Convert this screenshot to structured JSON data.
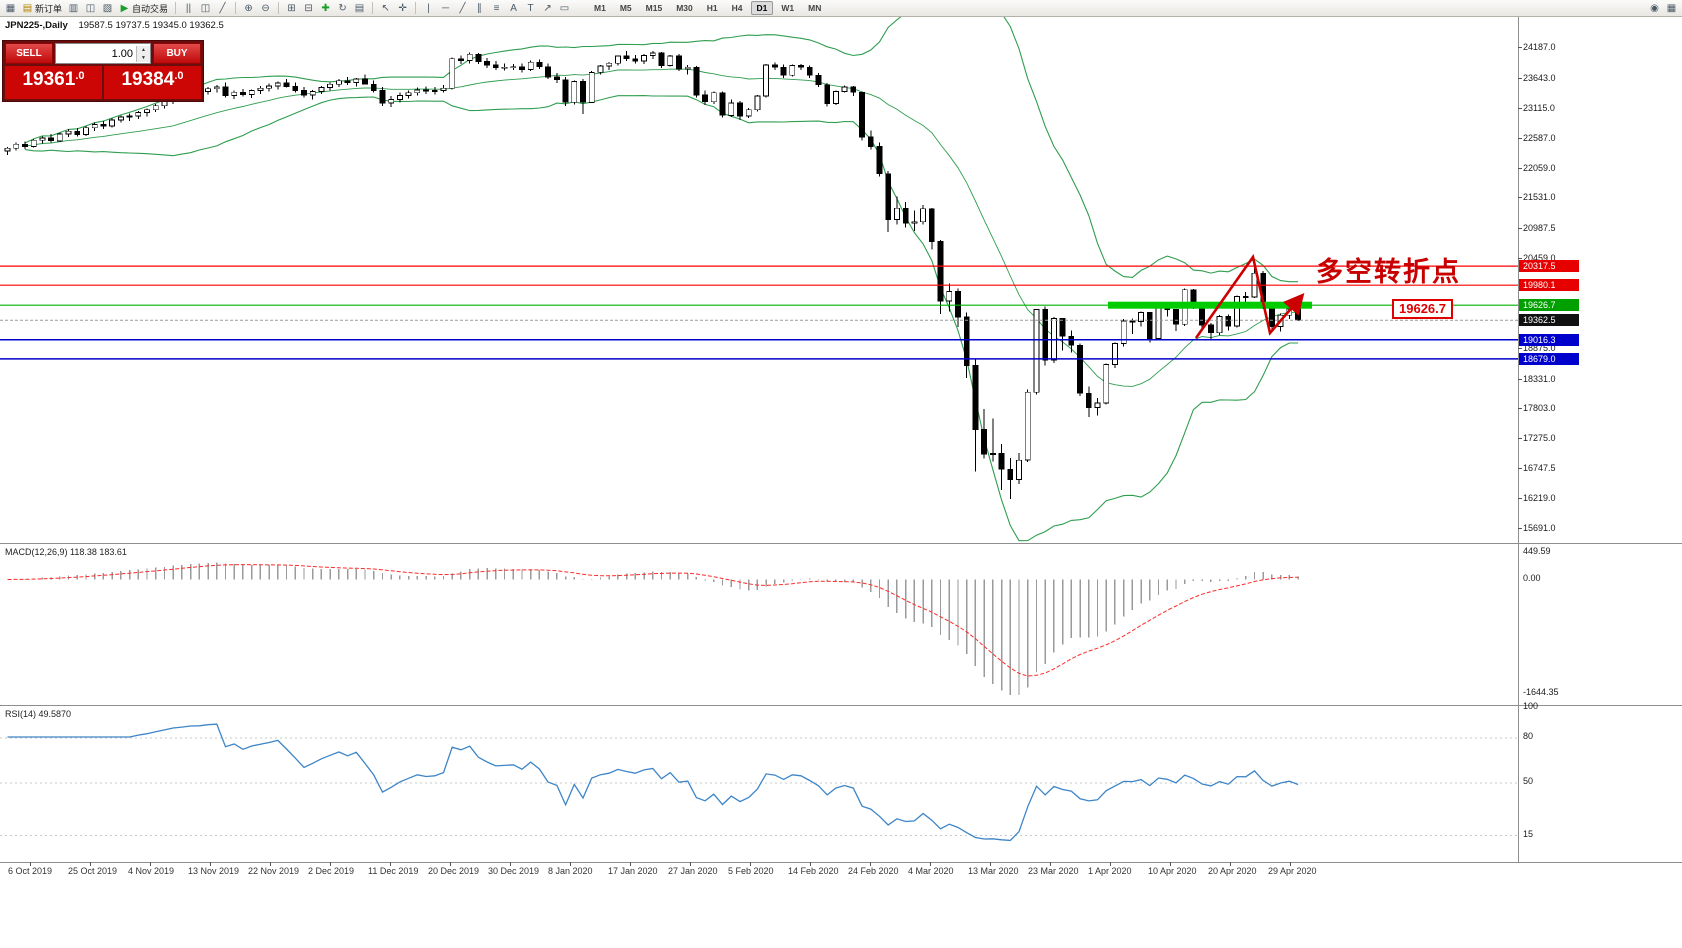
{
  "toolbar": {
    "tools": [
      {
        "name": "chart-window-icon",
        "glyph": "▦"
      },
      {
        "name": "new-order-button",
        "glyph": "▤",
        "label": "新订单",
        "color": "#b08000"
      },
      {
        "name": "profiles-icon",
        "glyph": "▥"
      },
      {
        "name": "data-window-icon",
        "glyph": "◫"
      },
      {
        "name": "navigator-icon",
        "glyph": "▧"
      },
      {
        "name": "auto-trading-button",
        "glyph": "▶",
        "label": "自动交易",
        "color": "#1c9e2c"
      },
      {
        "sep": true
      },
      {
        "name": "bar-chart-icon",
        "glyph": "||"
      },
      {
        "name": "candlestick-icon",
        "glyph": "◫"
      },
      {
        "name": "line-chart-icon",
        "glyph": "╱"
      },
      {
        "sep": true
      },
      {
        "name": "zoom-in-icon",
        "glyph": "⊕"
      },
      {
        "name": "zoom-out-icon",
        "glyph": "⊖"
      },
      {
        "sep": true
      },
      {
        "name": "tile-windows-icon",
        "glyph": "⊞"
      },
      {
        "name": "cascade-windows-icon",
        "glyph": "⊟"
      },
      {
        "name": "indicators-icon",
        "glyph": "✚",
        "color": "#1c9e2c"
      },
      {
        "name": "periods-icon",
        "glyph": "↻"
      },
      {
        "name": "templates-icon",
        "glyph": "▤"
      },
      {
        "sep": true
      },
      {
        "name": "cursor-icon",
        "glyph": "↖"
      },
      {
        "name": "crosshair-icon",
        "glyph": "✛"
      },
      {
        "sep": true
      },
      {
        "name": "vertical-line-icon",
        "glyph": "|"
      },
      {
        "name": "horizontal-line-icon",
        "glyph": "─"
      },
      {
        "name": "trendline-icon",
        "glyph": "╱"
      },
      {
        "name": "channel-icon",
        "glyph": "∥"
      },
      {
        "name": "fibonacci-icon",
        "glyph": "≡"
      },
      {
        "name": "text-icon",
        "glyph": "A"
      },
      {
        "name": "label-icon",
        "glyph": "T"
      },
      {
        "name": "arrows-icon",
        "glyph": "↗"
      },
      {
        "name": "shapes-icon",
        "glyph": "▭"
      }
    ],
    "timeframes": [
      "M1",
      "M5",
      "M15",
      "M30",
      "H1",
      "H4",
      "D1",
      "W1",
      "MN"
    ],
    "active_timeframe": "D1",
    "right_tools": [
      {
        "name": "search-icon",
        "glyph": "◉"
      },
      {
        "name": "new-chart-icon",
        "glyph": "▦"
      }
    ]
  },
  "chart_header": {
    "symbol_period": "JPN225-,Daily",
    "ohlc": "19587.5 19737.5 19345.0 19362.5"
  },
  "trade_panel": {
    "sell_label": "SELL",
    "buy_label": "BUY",
    "volume": "1.00",
    "sell_price": "19361.0",
    "buy_price": "19384.0"
  },
  "annotations": {
    "turning_point": "多空转折点",
    "price_tag": "19626.7"
  },
  "price_axis": {
    "ticks": [
      {
        "label": "24187.0",
        "value": 24187.0
      },
      {
        "label": "23643.0",
        "value": 23643.0
      },
      {
        "label": "23115.0",
        "value": 23115.0
      },
      {
        "label": "22587.0",
        "value": 22587.0
      },
      {
        "label": "22059.0",
        "value": 22059.0
      },
      {
        "label": "21531.0",
        "value": 21531.0
      },
      {
        "label": "20987.5",
        "value": 20987.5
      },
      {
        "label": "20459.0",
        "value": 20459.0
      },
      {
        "label": "18875.0",
        "value": 18875.0
      },
      {
        "label": "18331.0",
        "value": 18331.0
      },
      {
        "label": "17803.0",
        "value": 17803.0
      },
      {
        "label": "17275.0",
        "value": 17275.0
      },
      {
        "label": "16747.5",
        "value": 16747.5
      },
      {
        "label": "16219.0",
        "value": 16219.0
      },
      {
        "label": "15691.0",
        "value": 15691.0
      }
    ]
  },
  "time_axis": {
    "labels": [
      "6 Oct 2019",
      "25 Oct 2019",
      "4 Nov 2019",
      "13 Nov 2019",
      "22 Nov 2019",
      "2 Dec 2019",
      "11 Dec 2019",
      "20 Dec 2019",
      "30 Dec 2019",
      "8 Jan 2020",
      "17 Jan 2020",
      "27 Jan 2020",
      "5 Feb 2020",
      "14 Feb 2020",
      "24 Feb 2020",
      "4 Mar 2020",
      "13 Mar 2020",
      "23 Mar 2020",
      "1 Apr 2020",
      "10 Apr 2020",
      "20 Apr 2020",
      "29 Apr 2020"
    ]
  },
  "macd_panel": {
    "label": "MACD(12,26,9) 118.38 183.61",
    "scale": [
      "449.59",
      "0.00",
      "-1644.35"
    ]
  },
  "rsi_panel": {
    "label": "RSI(14) 49.5870",
    "scale": [
      "100",
      "80",
      "50",
      "15"
    ],
    "levels": [
      80,
      50,
      15
    ]
  },
  "chart_data": {
    "type": "candlestick",
    "symbol": "JPN225-",
    "timeframe": "Daily",
    "current_ohlc": [
      19587.5,
      19737.5,
      19345.0,
      19362.5
    ],
    "bid": 19361.0,
    "ask": 19384.0,
    "y_range": [
      15480,
      24700
    ],
    "bollinger": {
      "period": 20,
      "deviation": 2,
      "color": "#2f9e4f"
    },
    "macd": {
      "fast": 12,
      "slow": 26,
      "signal": 9
    },
    "rsi": {
      "period": 14
    },
    "levels": [
      {
        "price": 20317.5,
        "label": "20317.5",
        "color": "#ff0000",
        "badge": "#e60000",
        "width": 1.2
      },
      {
        "price": 19980.1,
        "label": "19980.1",
        "color": "#ff0000",
        "badge": "#e60000",
        "width": 1.2
      },
      {
        "price": 19626.7,
        "label": "19626.7",
        "color": "#00b300",
        "badge": "#00a000",
        "width": 1.2,
        "thick": [
          1108,
          1312
        ]
      },
      {
        "price": 19362.5,
        "label": "19362.5",
        "color": "#999999",
        "badge": "#111111",
        "width": 1,
        "dash": "3 2"
      },
      {
        "price": 19016.3,
        "label": "19016.3",
        "color": "#0000cc",
        "badge": "#0000cc",
        "width": 1.5
      },
      {
        "price": 18679.0,
        "label": "18679.0",
        "color": "#0000cc",
        "badge": "#0000cc",
        "width": 1.5
      }
    ],
    "candles": [
      [
        22350,
        22420,
        22280,
        22400
      ],
      [
        22400,
        22500,
        22360,
        22470
      ],
      [
        22470,
        22520,
        22390,
        22430
      ],
      [
        22430,
        22560,
        22410,
        22540
      ],
      [
        22540,
        22610,
        22480,
        22580
      ],
      [
        22580,
        22650,
        22500,
        22530
      ],
      [
        22530,
        22680,
        22510,
        22650
      ],
      [
        22650,
        22740,
        22600,
        22700
      ],
      [
        22700,
        22760,
        22610,
        22640
      ],
      [
        22640,
        22790,
        22620,
        22760
      ],
      [
        22760,
        22850,
        22700,
        22820
      ],
      [
        22820,
        22880,
        22740,
        22790
      ],
      [
        22790,
        22930,
        22770,
        22900
      ],
      [
        22900,
        22980,
        22850,
        22950
      ],
      [
        22950,
        23010,
        22880,
        22970
      ],
      [
        22970,
        23060,
        22920,
        23030
      ],
      [
        23030,
        23100,
        22960,
        23080
      ],
      [
        23080,
        23180,
        23040,
        23150
      ],
      [
        23150,
        23250,
        23100,
        23220
      ],
      [
        23220,
        23330,
        23180,
        23300
      ],
      [
        23300,
        23380,
        23250,
        23340
      ],
      [
        23340,
        23420,
        23280,
        23390
      ],
      [
        23390,
        23450,
        23320,
        23400
      ],
      [
        23400,
        23480,
        23350,
        23450
      ],
      [
        23450,
        23520,
        23380,
        23480
      ],
      [
        23480,
        23560,
        23300,
        23330
      ],
      [
        23330,
        23420,
        23270,
        23390
      ],
      [
        23390,
        23450,
        23310,
        23350
      ],
      [
        23350,
        23440,
        23290,
        23420
      ],
      [
        23420,
        23500,
        23360,
        23460
      ],
      [
        23460,
        23540,
        23400,
        23500
      ],
      [
        23500,
        23580,
        23440,
        23550
      ],
      [
        23550,
        23620,
        23470,
        23490
      ],
      [
        23490,
        23560,
        23380,
        23420
      ],
      [
        23420,
        23480,
        23300,
        23340
      ],
      [
        23340,
        23430,
        23260,
        23400
      ],
      [
        23400,
        23500,
        23360,
        23470
      ],
      [
        23470,
        23560,
        23420,
        23530
      ],
      [
        23530,
        23620,
        23480,
        23590
      ],
      [
        23590,
        23660,
        23520,
        23560
      ],
      [
        23560,
        23640,
        23490,
        23620
      ],
      [
        23620,
        23700,
        23550,
        23530
      ],
      [
        23530,
        23600,
        23380,
        23420
      ],
      [
        23420,
        23480,
        23150,
        23200
      ],
      [
        23200,
        23320,
        23130,
        23260
      ],
      [
        23260,
        23380,
        23210,
        23330
      ],
      [
        23330,
        23420,
        23280,
        23380
      ],
      [
        23380,
        23470,
        23330,
        23430
      ],
      [
        23430,
        23490,
        23360,
        23410
      ],
      [
        23410,
        23480,
        23350,
        23420
      ],
      [
        23420,
        23520,
        23380,
        23460
      ],
      [
        23460,
        24000,
        23440,
        23980
      ],
      [
        23980,
        24040,
        23890,
        23950
      ],
      [
        23950,
        24090,
        23900,
        24060
      ],
      [
        24060,
        24080,
        23890,
        23930
      ],
      [
        23930,
        23990,
        23820,
        23870
      ],
      [
        23870,
        23940,
        23780,
        23820
      ],
      [
        23820,
        23900,
        23770,
        23830
      ],
      [
        23830,
        23890,
        23780,
        23840
      ],
      [
        23840,
        23900,
        23740,
        23790
      ],
      [
        23790,
        23950,
        23760,
        23920
      ],
      [
        23920,
        23970,
        23800,
        23840
      ],
      [
        23840,
        23900,
        23620,
        23660
      ],
      [
        23660,
        23730,
        23550,
        23610
      ],
      [
        23610,
        23660,
        23150,
        23210
      ],
      [
        23210,
        23600,
        23170,
        23580
      ],
      [
        23580,
        23620,
        23000,
        23210
      ],
      [
        23210,
        23760,
        23200,
        23740
      ],
      [
        23740,
        23870,
        23700,
        23850
      ],
      [
        23850,
        23920,
        23780,
        23900
      ],
      [
        23900,
        24040,
        23860,
        24030
      ],
      [
        24030,
        24120,
        23940,
        23980
      ],
      [
        23980,
        24050,
        23900,
        23940
      ],
      [
        23940,
        24060,
        23890,
        24040
      ],
      [
        24040,
        24120,
        23980,
        24080
      ],
      [
        24080,
        24100,
        23820,
        23860
      ],
      [
        23860,
        24050,
        23840,
        24030
      ],
      [
        24030,
        24060,
        23760,
        23800
      ],
      [
        23800,
        23870,
        23700,
        23830
      ],
      [
        23830,
        23850,
        23300,
        23340
      ],
      [
        23340,
        23420,
        23160,
        23220
      ],
      [
        23220,
        23400,
        23180,
        23380
      ],
      [
        23380,
        23400,
        22940,
        22980
      ],
      [
        22980,
        23260,
        22950,
        23200
      ],
      [
        23200,
        23230,
        22900,
        22970
      ],
      [
        22970,
        23110,
        22930,
        23080
      ],
      [
        23080,
        23340,
        23050,
        23320
      ],
      [
        23320,
        23890,
        23300,
        23870
      ],
      [
        23870,
        23910,
        23780,
        23830
      ],
      [
        23830,
        23880,
        23640,
        23690
      ],
      [
        23690,
        23880,
        23670,
        23860
      ],
      [
        23860,
        23890,
        23780,
        23830
      ],
      [
        23830,
        23860,
        23640,
        23690
      ],
      [
        23690,
        23730,
        23480,
        23520
      ],
      [
        23520,
        23550,
        23140,
        23190
      ],
      [
        23190,
        23420,
        23160,
        23400
      ],
      [
        23400,
        23510,
        23380,
        23480
      ],
      [
        23480,
        23500,
        23320,
        23390
      ],
      [
        23390,
        23400,
        22540,
        22600
      ],
      [
        22600,
        22710,
        22380,
        22430
      ],
      [
        22430,
        22500,
        21900,
        21950
      ],
      [
        21950,
        22000,
        20920,
        21140
      ],
      [
        21140,
        21550,
        21050,
        21340
      ],
      [
        21340,
        21450,
        21000,
        21080
      ],
      [
        21080,
        21300,
        20940,
        21100
      ],
      [
        21100,
        21400,
        21050,
        21330
      ],
      [
        21330,
        21340,
        20610,
        20750
      ],
      [
        20750,
        20780,
        19470,
        19700
      ],
      [
        19700,
        20010,
        19520,
        19870
      ],
      [
        19870,
        19920,
        19240,
        19420
      ],
      [
        19420,
        19500,
        18340,
        18560
      ],
      [
        18560,
        18680,
        16690,
        17430
      ],
      [
        17430,
        17790,
        16920,
        17000
      ],
      [
        17000,
        17630,
        16870,
        17010
      ],
      [
        17010,
        17180,
        16360,
        16730
      ],
      [
        16730,
        16930,
        16200,
        16550
      ],
      [
        16550,
        17020,
        16470,
        16890
      ],
      [
        16890,
        18140,
        16860,
        18090
      ],
      [
        18090,
        19560,
        18050,
        19550
      ],
      [
        19550,
        19600,
        18560,
        18660
      ],
      [
        18660,
        19420,
        18610,
        19390
      ],
      [
        19390,
        19400,
        18830,
        19080
      ],
      [
        19080,
        19180,
        18790,
        18920
      ],
      [
        18920,
        18950,
        18020,
        18070
      ],
      [
        18070,
        18190,
        17650,
        17820
      ],
      [
        17820,
        17990,
        17680,
        17900
      ],
      [
        17900,
        18600,
        17870,
        18580
      ],
      [
        18580,
        18970,
        18520,
        18950
      ],
      [
        18950,
        19380,
        18900,
        19350
      ],
      [
        19350,
        19390,
        19120,
        19340
      ],
      [
        19340,
        19520,
        19250,
        19500
      ],
      [
        19500,
        19510,
        18970,
        19040
      ],
      [
        19040,
        19650,
        19000,
        19640
      ],
      [
        19640,
        19660,
        19430,
        19550
      ],
      [
        19550,
        19560,
        19170,
        19290
      ],
      [
        19290,
        19920,
        19260,
        19900
      ],
      [
        19900,
        19910,
        19560,
        19670
      ],
      [
        19670,
        19680,
        19200,
        19280
      ],
      [
        19280,
        19310,
        19020,
        19140
      ],
      [
        19140,
        19450,
        19100,
        19430
      ],
      [
        19430,
        19460,
        19180,
        19260
      ],
      [
        19260,
        19800,
        19230,
        19780
      ],
      [
        19780,
        19860,
        19640,
        19770
      ],
      [
        19770,
        20320,
        19750,
        20190
      ],
      [
        20190,
        20230,
        19560,
        19620
      ],
      [
        19620,
        19650,
        19150,
        19250
      ],
      [
        19250,
        19480,
        19160,
        19450
      ],
      [
        19450,
        19600,
        19380,
        19560
      ],
      [
        19587.5,
        19737.5,
        19345,
        19362.5
      ]
    ]
  }
}
